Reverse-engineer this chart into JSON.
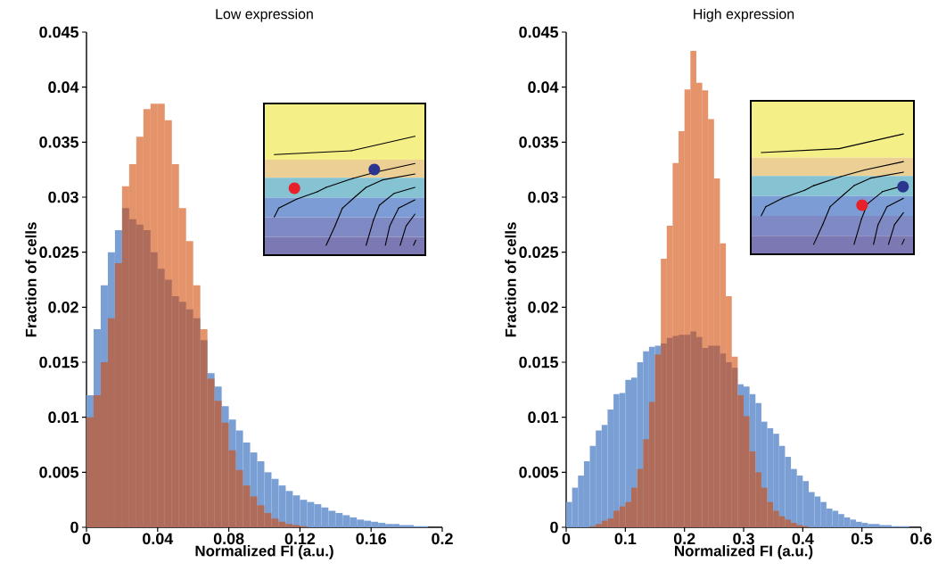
{
  "chart_data": [
    {
      "type": "histogram",
      "title": "Low expression",
      "xlabel": "Normalized FI (a.u.)",
      "ylabel": "Fraction of cells",
      "bins": [
        0,
        0.004,
        0.008,
        0.012,
        0.016,
        0.02,
        0.024,
        0.028,
        0.032,
        0.036,
        0.04,
        0.044,
        0.048,
        0.052,
        0.056,
        0.06,
        0.064,
        0.068,
        0.072,
        0.076,
        0.08,
        0.084,
        0.088,
        0.092,
        0.096,
        0.1,
        0.104,
        0.108,
        0.112,
        0.116,
        0.12,
        0.124,
        0.128,
        0.132,
        0.136,
        0.14,
        0.144,
        0.148,
        0.152,
        0.156,
        0.16,
        0.164,
        0.168,
        0.172,
        0.176,
        0.18,
        0.184,
        0.188,
        0.192,
        0.196,
        0.2
      ],
      "series": [
        {
          "color": "#7a9fd4",
          "values": [
            0.012,
            0.018,
            0.022,
            0.025,
            0.027,
            0.029,
            0.028,
            0.0275,
            0.027,
            0.025,
            0.0235,
            0.0225,
            0.021,
            0.0205,
            0.0198,
            0.019,
            0.017,
            0.014,
            0.0128,
            0.011,
            0.0098,
            0.0088,
            0.0077,
            0.0068,
            0.006,
            0.005,
            0.0044,
            0.0038,
            0.0033,
            0.0029,
            0.0025,
            0.0023,
            0.0021,
            0.0018,
            0.0015,
            0.0013,
            0.0011,
            0.0009,
            0.0007,
            0.0006,
            0.0005,
            0.0004,
            0.0003,
            0.0003,
            0.0002,
            0.0002,
            0.0001,
            0.0001,
            0,
            0
          ]
        },
        {
          "color": "#e5936b",
          "values": [
            0.01,
            0.012,
            0.015,
            0.019,
            0.024,
            0.031,
            0.033,
            0.0355,
            0.038,
            0.0385,
            0.0385,
            0.037,
            0.033,
            0.029,
            0.026,
            0.022,
            0.018,
            0.0135,
            0.0115,
            0.0095,
            0.007,
            0.0052,
            0.0038,
            0.0028,
            0.002,
            0.0013,
            0.0008,
            0.0005,
            0.0003,
            0.0002,
            0.0001,
            0,
            0,
            0,
            0,
            0,
            0,
            0,
            0,
            0,
            0,
            0,
            0,
            0,
            0,
            0,
            0,
            0,
            0,
            0
          ]
        }
      ],
      "xlim": [
        0,
        0.2
      ],
      "xticks": [
        0,
        0.04,
        0.08,
        0.12,
        0.16,
        0.2
      ],
      "ylim": [
        0,
        0.045
      ],
      "yticks": [
        0,
        0.005,
        0.01,
        0.015,
        0.02,
        0.025,
        0.03,
        0.035,
        0.04,
        0.045
      ]
    },
    {
      "type": "histogram",
      "title": "High expression",
      "xlabel": "Normalized FI (a.u.)",
      "ylabel": "Fraction of cells",
      "bins": [
        0,
        0.01,
        0.02,
        0.03,
        0.04,
        0.05,
        0.06,
        0.07,
        0.08,
        0.09,
        0.1,
        0.11,
        0.12,
        0.13,
        0.14,
        0.15,
        0.16,
        0.17,
        0.18,
        0.19,
        0.2,
        0.21,
        0.22,
        0.23,
        0.24,
        0.25,
        0.26,
        0.27,
        0.28,
        0.29,
        0.3,
        0.31,
        0.32,
        0.33,
        0.34,
        0.35,
        0.36,
        0.37,
        0.38,
        0.39,
        0.4,
        0.41,
        0.42,
        0.43,
        0.44,
        0.45,
        0.46,
        0.47,
        0.48,
        0.49,
        0.5,
        0.51,
        0.52,
        0.53,
        0.54,
        0.55,
        0.56,
        0.57,
        0.58,
        0.59,
        0.6
      ],
      "series": [
        {
          "color": "#7a9fd4",
          "values": [
            0.0023,
            0.0036,
            0.0047,
            0.006,
            0.0074,
            0.0088,
            0.0093,
            0.0107,
            0.0121,
            0.0122,
            0.0134,
            0.0136,
            0.015,
            0.016,
            0.0164,
            0.0165,
            0.0167,
            0.0172,
            0.0174,
            0.0175,
            0.0175,
            0.0178,
            0.0173,
            0.0163,
            0.0165,
            0.0165,
            0.0158,
            0.015,
            0.0145,
            0.013,
            0.0128,
            0.0121,
            0.0113,
            0.0096,
            0.009,
            0.0085,
            0.0074,
            0.0064,
            0.0053,
            0.0047,
            0.0042,
            0.0032,
            0.0028,
            0.0023,
            0.0017,
            0.0015,
            0.0012,
            0.0009,
            0.0007,
            0.0005,
            0.0004,
            0.0003,
            0.0003,
            0.0002,
            0.0002,
            0.0001,
            0.0001,
            0.0001,
            0,
            0
          ]
        },
        {
          "color": "#e5936b",
          "values": [
            0,
            0,
            0,
            0,
            0.0001,
            0.0003,
            0.0006,
            0.0008,
            0.0015,
            0.0019,
            0.0023,
            0.0036,
            0.0053,
            0.008,
            0.0114,
            0.0157,
            0.0244,
            0.0274,
            0.0331,
            0.036,
            0.0398,
            0.0433,
            0.0404,
            0.0397,
            0.0371,
            0.0317,
            0.0258,
            0.021,
            0.0155,
            0.012,
            0.0101,
            0.0069,
            0.005,
            0.0036,
            0.0023,
            0.0015,
            0.001,
            0.0007,
            0.0004,
            0.0002,
            0.0001,
            0,
            0,
            0,
            0,
            0,
            0,
            0,
            0,
            0,
            0,
            0,
            0,
            0,
            0,
            0,
            0,
            0,
            0,
            0
          ]
        }
      ],
      "xlim": [
        0,
        0.6
      ],
      "xticks": [
        0,
        0.1,
        0.2,
        0.3,
        0.4,
        0.5,
        0.6
      ],
      "ylim": [
        0,
        0.045
      ],
      "yticks": [
        0,
        0.005,
        0.01,
        0.015,
        0.02,
        0.025,
        0.03,
        0.035,
        0.04,
        0.045
      ]
    }
  ]
}
